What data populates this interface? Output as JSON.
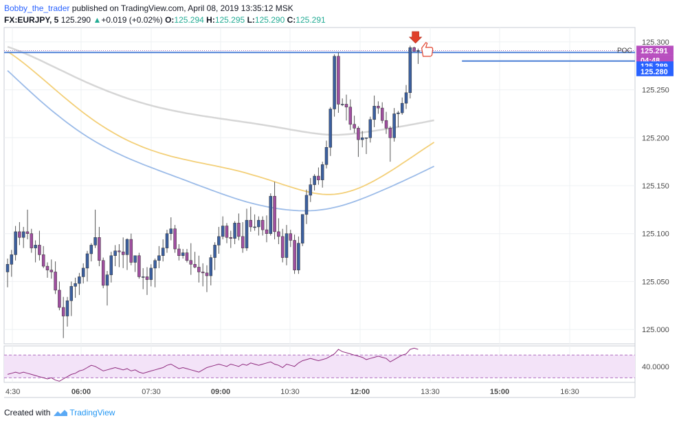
{
  "header": {
    "author": "Bobby_the_trader",
    "published": "published on TradingView.com, April 08, 2019 13:35:12 MSK",
    "symbol": "FX:EURJPY, 5",
    "last": "125.290",
    "change_arrow": "▲",
    "change": "+0.019 (+0.02%)",
    "o_label": "O:",
    "o_value": "125.294",
    "h_label": "H:",
    "h_value": "125.295",
    "l_label": "L:",
    "l_value": "125.290",
    "c_label": "C:",
    "c_value": "125.291"
  },
  "footer": {
    "created_with": "Created with",
    "brand": "TradingView"
  },
  "colors": {
    "bull_body": "#3b5f9f",
    "bear_body": "#a04fa0",
    "wick": "#555555",
    "sma_gray": "#d6d6d6",
    "sma_yellow": "#f3cf77",
    "sma_blue": "#9bbbe8",
    "level_line": "#4a7fd6",
    "rsi_fill": "#f3e3f8",
    "rsi_line": "#8e2a7e",
    "tag_blue": "#2962ff",
    "tag_purple": "#b84fbf",
    "arrow_red": "#e0402b"
  },
  "chart_data": {
    "type": "candlestick",
    "symbol": "FX:EURJPY",
    "timeframe": "5",
    "price_axis": {
      "ticks": [
        "125.300",
        "125.250",
        "125.200",
        "125.150",
        "125.100",
        "125.050",
        "125.000"
      ],
      "range": [
        124.985,
        125.315
      ]
    },
    "time_axis": {
      "ticks": [
        "4:30",
        "06:00",
        "07:30",
        "09:00",
        "10:30",
        "12:00",
        "13:30",
        "15:00",
        "16:30"
      ]
    },
    "tags": [
      {
        "label": "POC",
        "value": "125.291",
        "kind": "purple"
      },
      {
        "label": "",
        "value": "04:48",
        "kind": "purple"
      },
      {
        "label": "",
        "value": "125.289",
        "kind": "blue"
      },
      {
        "label": "",
        "value": "125.280",
        "kind": "blue"
      }
    ],
    "levels": [
      {
        "price": 125.291,
        "style": "dotted"
      },
      {
        "price": 125.289,
        "from": 0
      },
      {
        "price": 125.28,
        "from": 114
      }
    ],
    "candles": [
      [
        125.06,
        125.074,
        125.044,
        125.068
      ],
      [
        125.068,
        125.083,
        125.055,
        125.078
      ],
      [
        125.078,
        125.108,
        125.072,
        125.102
      ],
      [
        125.102,
        125.112,
        125.088,
        125.096
      ],
      [
        125.096,
        125.107,
        125.085,
        125.102
      ],
      [
        125.102,
        125.125,
        125.094,
        125.1
      ],
      [
        125.1,
        125.105,
        125.08,
        125.085
      ],
      [
        125.085,
        125.093,
        125.07,
        125.088
      ],
      [
        125.088,
        125.103,
        125.072,
        125.078
      ],
      [
        125.078,
        125.087,
        125.064,
        125.066
      ],
      [
        125.066,
        125.07,
        125.054,
        125.062
      ],
      [
        125.062,
        125.073,
        125.053,
        125.06
      ],
      [
        125.06,
        125.071,
        125.037,
        125.041
      ],
      [
        125.041,
        125.05,
        125.02,
        125.023
      ],
      [
        125.023,
        125.034,
        124.991,
        125.014
      ],
      [
        125.014,
        125.034,
        125.003,
        125.03
      ],
      [
        125.03,
        125.05,
        125.014,
        125.045
      ],
      [
        125.045,
        125.054,
        125.033,
        125.048
      ],
      [
        125.048,
        125.059,
        125.036,
        125.055
      ],
      [
        125.055,
        125.069,
        125.048,
        125.064
      ],
      [
        125.064,
        125.082,
        125.05,
        125.079
      ],
      [
        125.079,
        125.09,
        125.071,
        125.088
      ],
      [
        125.088,
        125.125,
        125.085,
        125.096
      ],
      [
        125.096,
        125.107,
        125.066,
        125.072
      ],
      [
        125.072,
        125.075,
        125.043,
        125.046
      ],
      [
        125.046,
        125.061,
        125.025,
        125.057
      ],
      [
        125.057,
        125.081,
        125.049,
        125.077
      ],
      [
        125.077,
        125.088,
        125.066,
        125.082
      ],
      [
        125.082,
        125.089,
        125.065,
        125.081
      ],
      [
        125.081,
        125.096,
        125.064,
        125.078
      ],
      [
        125.078,
        125.095,
        125.062,
        125.094
      ],
      [
        125.094,
        125.1,
        125.067,
        125.07
      ],
      [
        125.07,
        125.077,
        125.06,
        125.077
      ],
      [
        125.077,
        125.08,
        125.053,
        125.055
      ],
      [
        125.055,
        125.064,
        125.042,
        125.055
      ],
      [
        125.055,
        125.065,
        125.036,
        125.052
      ],
      [
        125.052,
        125.068,
        125.045,
        125.064
      ],
      [
        125.064,
        125.074,
        125.044,
        125.072
      ],
      [
        125.072,
        125.087,
        125.064,
        125.077
      ],
      [
        125.077,
        125.094,
        125.071,
        125.085
      ],
      [
        125.085,
        125.104,
        125.08,
        125.1
      ],
      [
        125.1,
        125.117,
        125.093,
        125.105
      ],
      [
        125.105,
        125.109,
        125.08,
        125.084
      ],
      [
        125.084,
        125.089,
        125.072,
        125.077
      ],
      [
        125.077,
        125.084,
        125.074,
        125.08
      ],
      [
        125.08,
        125.084,
        125.07,
        125.072
      ],
      [
        125.072,
        125.09,
        125.057,
        125.068
      ],
      [
        125.068,
        125.081,
        125.064,
        125.065
      ],
      [
        125.065,
        125.077,
        125.049,
        125.06
      ],
      [
        125.06,
        125.069,
        125.045,
        125.059
      ],
      [
        125.059,
        125.067,
        125.039,
        125.056
      ],
      [
        125.056,
        125.078,
        125.046,
        125.075
      ],
      [
        125.075,
        125.091,
        125.062,
        125.088
      ],
      [
        125.088,
        125.107,
        125.079,
        125.097
      ],
      [
        125.097,
        125.118,
        125.094,
        125.108
      ],
      [
        125.108,
        125.111,
        125.09,
        125.096
      ],
      [
        125.096,
        125.103,
        125.085,
        125.095
      ],
      [
        125.095,
        125.113,
        125.089,
        125.111
      ],
      [
        125.111,
        125.121,
        125.093,
        125.097
      ],
      [
        125.097,
        125.112,
        125.08,
        125.085
      ],
      [
        125.085,
        125.126,
        125.082,
        125.114
      ],
      [
        125.114,
        125.128,
        125.102,
        125.107
      ],
      [
        125.107,
        125.12,
        125.103,
        125.107
      ],
      [
        125.107,
        125.118,
        125.098,
        125.114
      ],
      [
        125.114,
        125.118,
        125.098,
        125.104
      ],
      [
        125.104,
        125.119,
        125.091,
        125.1
      ],
      [
        125.1,
        125.142,
        125.098,
        125.139
      ],
      [
        125.139,
        125.154,
        125.094,
        125.102
      ],
      [
        125.102,
        125.116,
        125.089,
        125.097
      ],
      [
        125.097,
        125.105,
        125.07,
        125.075
      ],
      [
        125.075,
        125.109,
        125.067,
        125.1
      ],
      [
        125.1,
        125.104,
        125.086,
        125.093
      ],
      [
        125.093,
        125.099,
        125.058,
        125.062
      ],
      [
        125.062,
        125.097,
        125.058,
        125.09
      ],
      [
        125.09,
        125.12,
        125.087,
        125.12
      ],
      [
        125.12,
        125.146,
        125.11,
        125.14
      ],
      [
        125.14,
        125.158,
        125.133,
        125.151
      ],
      [
        125.151,
        125.162,
        125.145,
        125.16
      ],
      [
        125.16,
        125.169,
        125.151,
        125.156
      ],
      [
        125.156,
        125.175,
        125.148,
        125.172
      ],
      [
        125.172,
        125.197,
        125.168,
        125.19
      ],
      [
        125.19,
        125.232,
        125.181,
        125.23
      ],
      [
        125.23,
        125.287,
        125.222,
        125.285
      ],
      [
        125.285,
        125.289,
        125.226,
        125.235
      ],
      [
        125.235,
        125.241,
        125.233,
        125.235
      ],
      [
        125.235,
        125.245,
        125.218,
        125.232
      ],
      [
        125.232,
        125.24,
        125.208,
        125.214
      ],
      [
        125.214,
        125.223,
        125.205,
        125.21
      ],
      [
        125.21,
        125.212,
        125.18,
        125.198
      ],
      [
        125.198,
        125.207,
        125.19,
        125.2
      ],
      [
        125.2,
        125.2,
        125.183,
        125.2
      ],
      [
        125.2,
        125.222,
        125.195,
        125.219
      ],
      [
        125.219,
        125.244,
        125.211,
        125.233
      ],
      [
        125.233,
        125.238,
        125.225,
        125.231
      ],
      [
        125.231,
        125.237,
        125.215,
        125.218
      ],
      [
        125.218,
        125.227,
        125.204,
        125.21
      ],
      [
        125.21,
        125.212,
        125.175,
        125.2
      ],
      [
        125.2,
        125.231,
        125.196,
        125.225
      ],
      [
        125.225,
        125.228,
        125.211,
        125.226
      ],
      [
        125.226,
        125.242,
        125.224,
        125.236
      ],
      [
        125.236,
        125.255,
        125.23,
        125.247
      ],
      [
        125.247,
        125.296,
        125.241,
        125.294
      ],
      [
        125.294,
        125.295,
        125.29,
        125.29
      ],
      [
        125.29,
        125.293,
        125.277,
        125.291
      ]
    ],
    "sma_gray": [
      125.295,
      125.2935,
      125.2919,
      125.2903,
      125.2886,
      125.2868,
      125.285,
      125.2831,
      125.2812,
      125.2792,
      125.2772,
      125.2752,
      125.2732,
      125.2712,
      125.2692,
      125.2672,
      125.2652,
      125.2632,
      125.2613,
      125.2594,
      125.2575,
      125.2557,
      125.2539,
      125.2522,
      125.2505,
      125.2488,
      125.2472,
      125.2456,
      125.2441,
      125.2426,
      125.2412,
      125.2398,
      125.2385,
      125.2372,
      125.236,
      125.2348,
      125.2337,
      125.2326,
      125.2316,
      125.2306,
      125.2297,
      125.2288,
      125.2279,
      125.2271,
      125.2263,
      125.2255,
      125.2248,
      125.2241,
      125.2234,
      125.2227,
      125.2221,
      125.2215,
      125.2208,
      125.2202,
      125.2196,
      125.219,
      125.2184,
      125.2178,
      125.2172,
      125.2166,
      125.216,
      125.2154,
      125.2148,
      125.2141,
      125.2135,
      125.2128,
      125.2121,
      125.2114,
      125.2107,
      125.21,
      125.2093,
      125.2085,
      125.2078,
      125.2071,
      125.2064,
      125.2058,
      125.2051,
      125.2046,
      125.2041,
      125.2036,
      125.2033,
      125.2031,
      125.203,
      125.203,
      125.2032,
      125.2035,
      125.2039,
      125.2043,
      125.2048,
      125.2054,
      125.206,
      125.2066,
      125.2072,
      125.2079,
      125.2085,
      125.2092,
      125.2099,
      125.2106,
      125.2113,
      125.212,
      125.2127,
      125.2135,
      125.2142,
      125.215,
      125.2158,
      125.2166,
      125.2174,
      125.2182
    ],
    "sma_yellow": [
      125.29,
      125.2872,
      125.2843,
      125.2812,
      125.278,
      125.2747,
      125.2713,
      125.2678,
      125.2643,
      125.2608,
      125.2572,
      125.2536,
      125.2501,
      125.2465,
      125.243,
      125.2395,
      125.2361,
      125.2327,
      125.2294,
      125.2262,
      125.2231,
      125.22,
      125.2171,
      125.2143,
      125.2116,
      125.209,
      125.2065,
      125.2041,
      125.2018,
      125.1996,
      125.1975,
      125.1955,
      125.1937,
      125.1919,
      125.1902,
      125.1886,
      125.1871,
      125.1857,
      125.1843,
      125.1831,
      125.1819,
      125.1807,
      125.1797,
      125.1787,
      125.1777,
      125.1768,
      125.1759,
      125.175,
      125.1741,
      125.1733,
      125.1724,
      125.1716,
      125.1708,
      125.1699,
      125.169,
      125.1681,
      125.1672,
      125.1662,
      125.1652,
      125.1641,
      125.163,
      125.1618,
      125.1606,
      125.1594,
      125.1581,
      125.1568,
      125.1555,
      125.1541,
      125.1527,
      125.1513,
      125.15,
      125.1487,
      125.1474,
      125.1461,
      125.145,
      125.1439,
      125.1429,
      125.1421,
      125.1415,
      125.141,
      125.1408,
      125.1408,
      125.141,
      125.1415,
      125.1422,
      125.1432,
      125.1443,
      125.1457,
      125.1473,
      125.149,
      125.1509,
      125.153,
      125.1552,
      125.1575,
      125.1599,
      125.1624,
      125.165,
      125.1676,
      125.1703,
      125.1731,
      125.1758,
      125.1786,
      125.1814,
      125.1842,
      125.187,
      125.1898,
      125.1925,
      125.1953
    ],
    "sma_blue": [
      125.27,
      125.2662,
      125.2623,
      125.2584,
      125.2545,
      125.2507,
      125.2469,
      125.2431,
      125.2394,
      125.2358,
      125.2322,
      125.2287,
      125.2253,
      125.222,
      125.2187,
      125.2156,
      125.2125,
      125.2095,
      125.2066,
      125.2038,
      125.2011,
      125.1985,
      125.196,
      125.1936,
      125.1913,
      125.1891,
      125.1869,
      125.1849,
      125.1829,
      125.181,
      125.1791,
      125.1773,
      125.1756,
      125.1739,
      125.1722,
      125.1706,
      125.169,
      125.1674,
      125.1658,
      125.1643,
      125.1627,
      125.1612,
      125.1596,
      125.1581,
      125.1565,
      125.155,
      125.1534,
      125.1518,
      125.1503,
      125.1487,
      125.1472,
      125.1456,
      125.1441,
      125.1426,
      125.1411,
      125.1397,
      125.1383,
      125.1369,
      125.1356,
      125.1343,
      125.1331,
      125.132,
      125.1309,
      125.1299,
      125.129,
      125.1281,
      125.1273,
      125.1266,
      125.126,
      125.1254,
      125.1249,
      125.1245,
      125.1242,
      125.1239,
      125.1238,
      125.1238,
      125.1239,
      125.1241,
      125.1245,
      125.125,
      125.1256,
      125.1264,
      125.1273,
      125.1283,
      125.1294,
      125.1306,
      125.132,
      125.1334,
      125.1349,
      125.1365,
      125.1381,
      125.1398,
      125.1415,
      125.1433,
      125.1451,
      125.1469,
      125.1487,
      125.1506,
      125.1525,
      125.1544,
      125.1563,
      125.1583,
      125.1602,
      125.1622,
      125.1642,
      125.1662,
      125.1682,
      125.1702
    ],
    "rsi": {
      "tick": "40.0000",
      "range": [
        26,
        58
      ],
      "bands": [
        50,
        30
      ],
      "values": [
        33,
        34,
        35,
        34,
        35,
        34,
        33,
        32,
        31,
        30,
        29,
        30,
        28,
        27,
        29,
        31,
        33,
        34,
        36,
        37,
        39,
        41,
        40,
        38,
        36,
        37,
        38,
        39,
        38,
        37,
        38,
        36,
        37,
        35,
        34,
        35,
        36,
        37,
        38,
        39,
        41,
        42,
        40,
        38,
        39,
        38,
        37,
        36,
        35,
        37,
        39,
        40,
        41,
        42,
        41,
        40,
        42,
        41,
        40,
        42,
        41,
        43,
        42,
        41,
        42,
        43,
        44,
        42,
        41,
        39,
        42,
        41,
        40,
        43,
        45,
        46,
        47,
        46,
        45,
        46,
        47,
        49,
        51,
        55,
        53,
        52,
        51,
        50,
        49,
        48,
        46,
        47,
        48,
        49,
        48,
        47,
        44,
        46,
        48,
        50,
        51,
        55,
        56,
        55
      ]
    }
  }
}
